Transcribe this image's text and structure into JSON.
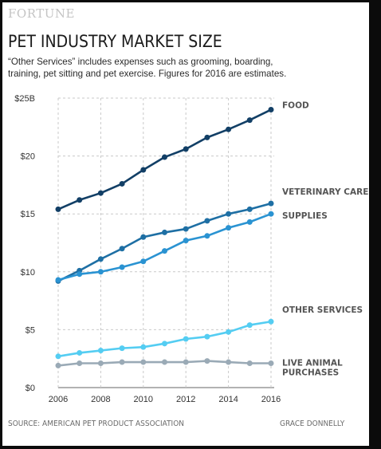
{
  "header": {
    "brand": "FORTUNE",
    "title": "PET INDUSTRY MARKET SIZE",
    "subtitle": "“Other Services” includes expenses such as grooming, boarding, training, pet sitting and pet exercise. Figures for 2016 are estimates."
  },
  "footer": {
    "source": "SOURCE: AMERICAN PET PRODUCT ASSOCIATION",
    "credit": "GRACE DONNELLY"
  },
  "chart_data": {
    "type": "line",
    "x": [
      2006,
      2007,
      2008,
      2009,
      2010,
      2011,
      2012,
      2013,
      2014,
      2015,
      2016
    ],
    "x_ticks": [
      "2006",
      "2008",
      "2010",
      "2012",
      "2014",
      "2016"
    ],
    "y_ticks": [
      "$0",
      "$5",
      "$10",
      "$15",
      "$20",
      "$25B"
    ],
    "ylim": [
      0,
      25
    ],
    "grid": true,
    "series": [
      {
        "name": "FOOD",
        "color": "#123f66",
        "values": [
          15.4,
          16.2,
          16.8,
          17.6,
          18.8,
          19.9,
          20.6,
          21.6,
          22.3,
          23.1,
          24.0
        ]
      },
      {
        "name": "VETERINARY CARE",
        "color": "#1e6fa4",
        "values": [
          9.2,
          10.1,
          11.1,
          12.0,
          13.0,
          13.4,
          13.7,
          14.4,
          15.0,
          15.4,
          15.9
        ]
      },
      {
        "name": "SUPPLIES",
        "color": "#2a93d2",
        "values": [
          9.3,
          9.8,
          10.0,
          10.4,
          10.9,
          11.8,
          12.7,
          13.1,
          13.8,
          14.3,
          15.0
        ]
      },
      {
        "name": "OTHER SERVICES",
        "color": "#54cdf2",
        "values": [
          2.7,
          3.0,
          3.2,
          3.4,
          3.5,
          3.8,
          4.2,
          4.4,
          4.8,
          5.4,
          5.7
        ]
      },
      {
        "name": "LIVE ANIMAL PURCHASES",
        "label_lines": [
          "LIVE ANIMAL",
          "PURCHASES"
        ],
        "color": "#9aaab6",
        "values": [
          1.9,
          2.1,
          2.1,
          2.2,
          2.2,
          2.2,
          2.2,
          2.3,
          2.2,
          2.1,
          2.1
        ]
      }
    ]
  }
}
